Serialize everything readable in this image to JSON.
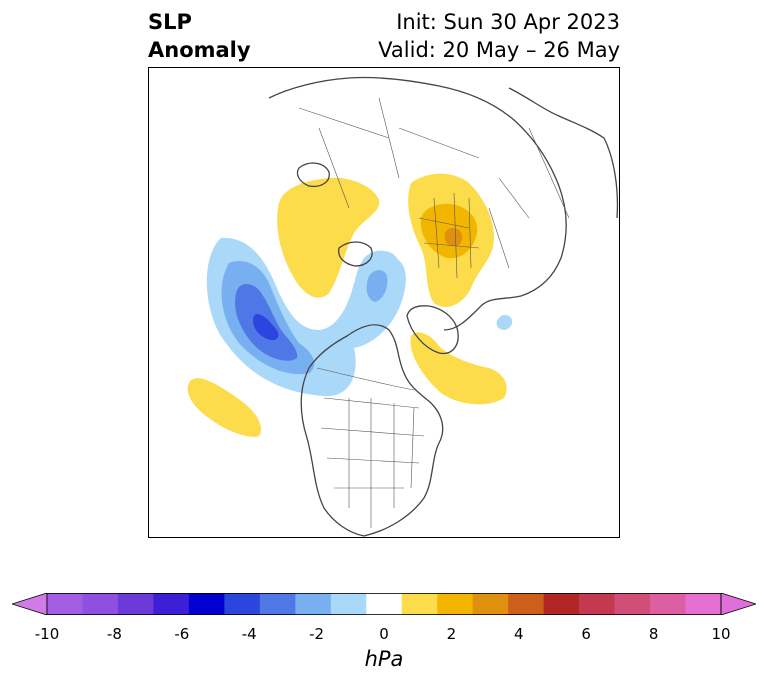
{
  "header": {
    "title_line1": "SLP",
    "title_line2": "Anomaly",
    "init_text": "Init: Sun 30 Apr 2023",
    "valid_text": "Valid: 20 May – 26 May"
  },
  "colorbar": {
    "unit": "hPa",
    "ticks": [
      "-10",
      "-8",
      "-6",
      "-4",
      "-2",
      "0",
      "2",
      "4",
      "6",
      "8",
      "10"
    ],
    "bins": [
      {
        "range": "-10 to -9",
        "color": "#a35de0"
      },
      {
        "range": "-9 to -8",
        "color": "#8f4fe0"
      },
      {
        "range": "-8 to -7",
        "color": "#6b3ad9"
      },
      {
        "range": "-7 to -6",
        "color": "#3c1fd6"
      },
      {
        "range": "-6 to -5",
        "color": "#0000d2"
      },
      {
        "range": "-5 to -4",
        "color": "#2d45df"
      },
      {
        "range": "-4 to -3",
        "color": "#4f78e6"
      },
      {
        "range": "-3 to -2",
        "color": "#78aff0"
      },
      {
        "range": "-2 to -1",
        "color": "#a9d8f8"
      },
      {
        "range": "-1 to 1",
        "color": "#ffffff"
      },
      {
        "range": "1 to 2",
        "color": "#fcdc4a"
      },
      {
        "range": "2 to 3",
        "color": "#f2b600"
      },
      {
        "range": "3 to 4",
        "color": "#e0900f"
      },
      {
        "range": "4 to 5",
        "color": "#cc5f1a"
      },
      {
        "range": "5 to 6",
        "color": "#b32626"
      },
      {
        "range": "6 to 7",
        "color": "#c4394f"
      },
      {
        "range": "7 to 8",
        "color": "#d14e79"
      },
      {
        "range": "8 to 9",
        "color": "#dc5ea3"
      },
      {
        "range": "9 to 10",
        "color": "#e56fd2"
      }
    ],
    "under_color": "#d17be6",
    "over_color": "#e06fdc"
  },
  "map": {
    "projection": "north-polar",
    "features": [
      "coastlines",
      "country borders",
      "US state borders"
    ]
  }
}
